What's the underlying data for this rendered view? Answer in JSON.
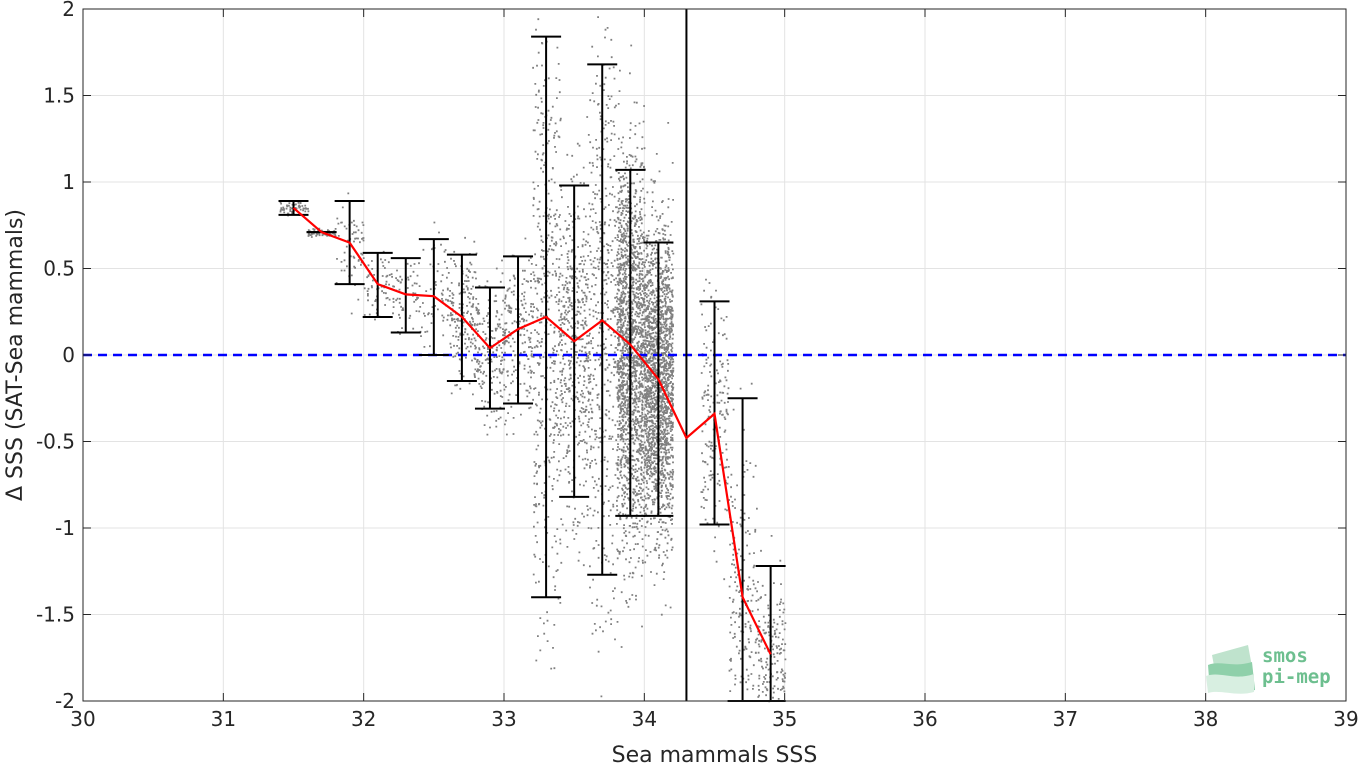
{
  "chart_data": {
    "type": "scatter",
    "title": "",
    "xlabel": "Sea mammals SSS",
    "ylabel": "Δ SSS (SAT-Sea mammals)",
    "xlim": [
      30,
      39
    ],
    "ylim": [
      -2,
      2
    ],
    "x_ticks": [
      "30",
      "31",
      "32",
      "33",
      "34",
      "35",
      "36",
      "37",
      "38",
      "39"
    ],
    "y_ticks": [
      "2",
      "1.5",
      "1",
      "0.5",
      "0",
      "-0.5",
      "-1",
      "-1.5",
      "-2"
    ],
    "grid": true,
    "legend": "none",
    "reference_line": {
      "y": 0,
      "style": "dashed",
      "color": "#0000ff"
    },
    "vertical_line": {
      "x": 34.3,
      "color": "#000000"
    },
    "scatter_color": "#808080",
    "mean_line_color": "#ff0000",
    "errorbar_color": "#000000",
    "binned_series": [
      {
        "x": 31.5,
        "mean": 0.85,
        "lo": 0.81,
        "hi": 0.89
      },
      {
        "x": 31.7,
        "mean": 0.71,
        "lo": 0.71,
        "hi": 0.71
      },
      {
        "x": 31.9,
        "mean": 0.65,
        "lo": 0.41,
        "hi": 0.89
      },
      {
        "x": 32.1,
        "mean": 0.41,
        "lo": 0.22,
        "hi": 0.59
      },
      {
        "x": 32.3,
        "mean": 0.35,
        "lo": 0.13,
        "hi": 0.56
      },
      {
        "x": 32.5,
        "mean": 0.34,
        "lo": 0.0,
        "hi": 0.67
      },
      {
        "x": 32.7,
        "mean": 0.22,
        "lo": -0.15,
        "hi": 0.58
      },
      {
        "x": 32.9,
        "mean": 0.04,
        "lo": -0.31,
        "hi": 0.39
      },
      {
        "x": 33.1,
        "mean": 0.15,
        "lo": -0.28,
        "hi": 0.57
      },
      {
        "x": 33.3,
        "mean": 0.22,
        "lo": -1.4,
        "hi": 1.84
      },
      {
        "x": 33.5,
        "mean": 0.08,
        "lo": -0.82,
        "hi": 0.98
      },
      {
        "x": 33.7,
        "mean": 0.2,
        "lo": -1.27,
        "hi": 1.68
      },
      {
        "x": 33.9,
        "mean": 0.06,
        "lo": -0.93,
        "hi": 1.07
      },
      {
        "x": 34.1,
        "mean": -0.14,
        "lo": -0.93,
        "hi": 0.65
      },
      {
        "x": 34.3,
        "mean": -0.48,
        "lo": null,
        "hi": null
      },
      {
        "x": 34.5,
        "mean": -0.34,
        "lo": -0.98,
        "hi": 0.31
      },
      {
        "x": 34.7,
        "mean": -1.4,
        "lo": -2.0,
        "hi": -0.25
      },
      {
        "x": 34.9,
        "mean": -1.73,
        "lo": -2.0,
        "hi": -1.22
      }
    ]
  },
  "logo": {
    "line1": "smos",
    "line2": "pi-mep",
    "color": "#6dbf8f"
  }
}
